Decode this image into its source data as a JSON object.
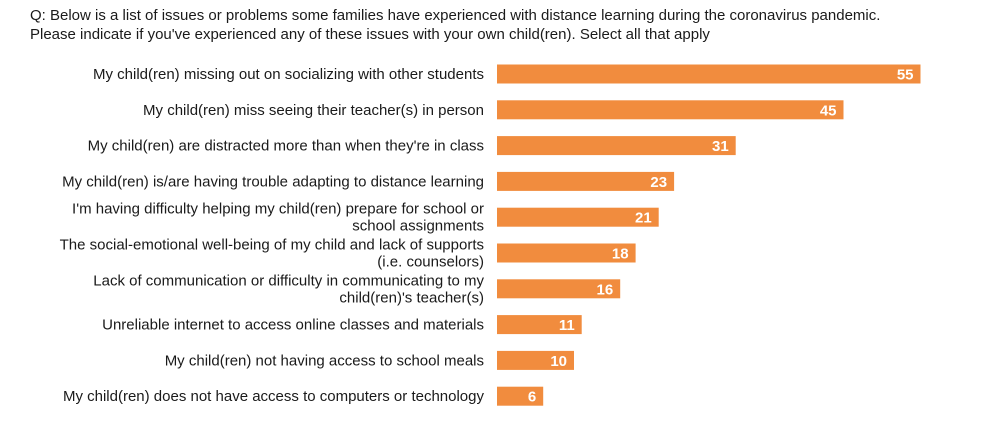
{
  "question": "Q: Below is a list of issues or problems some families have experienced with distance learning during the coronavirus pandemic. Please indicate if you've experienced any of these issues with your own child(ren). Select all that apply",
  "colors": {
    "bar": "#F18C3E",
    "text": "#1a1a1a",
    "value_text": "#ffffff"
  },
  "chart_data": {
    "type": "bar",
    "orientation": "horizontal",
    "title": "",
    "xlabel": "",
    "ylabel": "",
    "grid": false,
    "xlim": [
      0,
      60
    ],
    "categories": [
      [
        "My child(ren) missing out on socializing with other students"
      ],
      [
        "My child(ren) miss seeing their teacher(s) in person"
      ],
      [
        "My child(ren) are distracted more than when they're in class"
      ],
      [
        "My child(ren) is/are having trouble adapting to distance learning"
      ],
      [
        "I'm having difficulty helping my child(ren) prepare for school or",
        "school assignments"
      ],
      [
        "The social-emotional well-being of my child and lack of supports",
        "(i.e. counselors)"
      ],
      [
        "Lack of communication or difficulty in communicating to my",
        "child(ren)'s teacher(s)"
      ],
      [
        "Unreliable internet to access online classes and materials"
      ],
      [
        "My child(ren) not having access to school meals"
      ],
      [
        "My child(ren) does not have access to computers or technology"
      ]
    ],
    "values": [
      55,
      45,
      31,
      23,
      21,
      18,
      16,
      11,
      10,
      6
    ]
  }
}
